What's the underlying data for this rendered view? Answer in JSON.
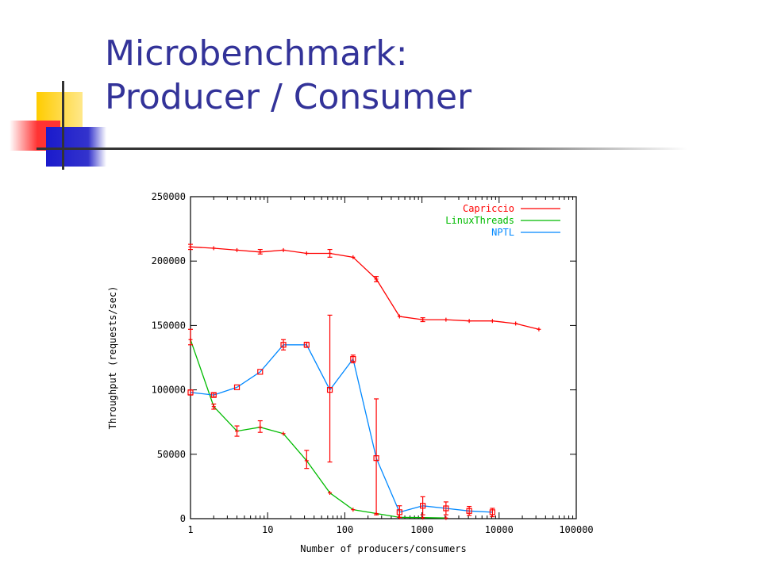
{
  "slide": {
    "title_line1": "Microbenchmark:",
    "title_line2": "Producer / Consumer",
    "title_color": "#333399"
  },
  "chart_data": {
    "type": "line",
    "title": "",
    "xlabel": "Number of producers/consumers",
    "ylabel": "Throughput (requests/sec)",
    "x_scale": "log",
    "xlim": [
      1,
      100000
    ],
    "ylim": [
      0,
      250000
    ],
    "x_ticks": [
      {
        "value": 1,
        "label": "1"
      },
      {
        "value": 10,
        "label": "10"
      },
      {
        "value": 100,
        "label": "100"
      },
      {
        "value": 1000,
        "label": "1000"
      },
      {
        "value": 10000,
        "label": "10000"
      },
      {
        "value": 100000,
        "label": "100000"
      }
    ],
    "y_ticks": [
      {
        "value": 0,
        "label": "0"
      },
      {
        "value": 50000,
        "label": "50000"
      },
      {
        "value": 100000,
        "label": "100000"
      },
      {
        "value": 150000,
        "label": "150000"
      },
      {
        "value": 200000,
        "label": "200000"
      },
      {
        "value": 250000,
        "label": "250000"
      }
    ],
    "grid": false,
    "legend_position": "top-right",
    "series": [
      {
        "name": "Capriccio",
        "color": "#ff0000",
        "points": [
          {
            "x": 1,
            "y": 211000,
            "err_lo": 209000,
            "err_hi": 213000
          },
          {
            "x": 2,
            "y": 210000
          },
          {
            "x": 4,
            "y": 208500
          },
          {
            "x": 8,
            "y": 207000,
            "err_lo": 205500,
            "err_hi": 209000
          },
          {
            "x": 16,
            "y": 208500
          },
          {
            "x": 32,
            "y": 206000
          },
          {
            "x": 64,
            "y": 206000,
            "err_lo": 203000,
            "err_hi": 209000
          },
          {
            "x": 128,
            "y": 203000
          },
          {
            "x": 256,
            "y": 186000,
            "err_lo": 184000,
            "err_hi": 188000
          },
          {
            "x": 512,
            "y": 157000
          },
          {
            "x": 1024,
            "y": 154500,
            "err_lo": 153000,
            "err_hi": 156000
          },
          {
            "x": 2048,
            "y": 154500
          },
          {
            "x": 4096,
            "y": 153500
          },
          {
            "x": 8192,
            "y": 153500
          },
          {
            "x": 16384,
            "y": 151500
          },
          {
            "x": 32768,
            "y": 147000
          }
        ]
      },
      {
        "name": "LinuxThreads",
        "color": "#00bb00",
        "points": [
          {
            "x": 1,
            "y": 139000,
            "err_lo": 135000,
            "err_hi": 147000
          },
          {
            "x": 2,
            "y": 87000,
            "err_lo": 85000,
            "err_hi": 89000
          },
          {
            "x": 4,
            "y": 68000,
            "err_lo": 64000,
            "err_hi": 72000
          },
          {
            "x": 8,
            "y": 71000,
            "err_lo": 67000,
            "err_hi": 76000
          },
          {
            "x": 16,
            "y": 66000
          },
          {
            "x": 32,
            "y": 45000,
            "err_lo": 39000,
            "err_hi": 53000
          },
          {
            "x": 64,
            "y": 20000
          },
          {
            "x": 128,
            "y": 7000
          },
          {
            "x": 256,
            "y": 4000
          },
          {
            "x": 512,
            "y": 1000
          },
          {
            "x": 1024,
            "y": 800
          },
          {
            "x": 2048,
            "y": 500
          }
        ]
      },
      {
        "name": "NPTL",
        "color": "#0088ff",
        "points": [
          {
            "x": 1,
            "y": 98000,
            "err_lo": 96000,
            "err_hi": 100000
          },
          {
            "x": 2,
            "y": 96000,
            "err_lo": 94500,
            "err_hi": 97500
          },
          {
            "x": 4,
            "y": 102000
          },
          {
            "x": 8,
            "y": 114000
          },
          {
            "x": 16,
            "y": 135000,
            "err_lo": 131000,
            "err_hi": 139000
          },
          {
            "x": 32,
            "y": 135000,
            "err_lo": 133000,
            "err_hi": 137000
          },
          {
            "x": 64,
            "y": 100000,
            "err_lo": 44000,
            "err_hi": 158000
          },
          {
            "x": 128,
            "y": 124000,
            "err_lo": 121000,
            "err_hi": 127000
          },
          {
            "x": 256,
            "y": 47000,
            "err_lo": 3000,
            "err_hi": 93000
          },
          {
            "x": 512,
            "y": 5000,
            "err_lo": 1000,
            "err_hi": 10000
          },
          {
            "x": 1024,
            "y": 10000,
            "err_lo": 3000,
            "err_hi": 17000
          },
          {
            "x": 2048,
            "y": 8000,
            "err_lo": 3000,
            "err_hi": 13000
          },
          {
            "x": 4096,
            "y": 6000,
            "err_lo": 2500,
            "err_hi": 9500
          },
          {
            "x": 8192,
            "y": 5000,
            "err_lo": 1500,
            "err_hi": 8000
          }
        ]
      }
    ]
  }
}
